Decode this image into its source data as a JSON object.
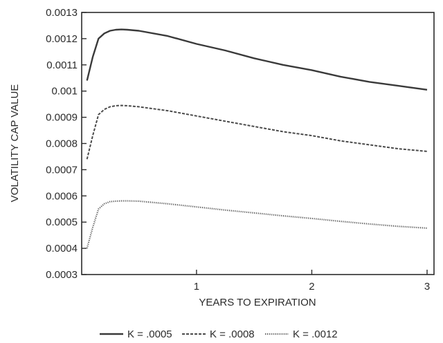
{
  "chart_data": {
    "type": "line",
    "title": "",
    "xlabel": "YEARS TO EXPIRATION",
    "ylabel": "VOLATILITY CAP VALUE",
    "xlim": [
      0.0,
      3.0
    ],
    "ylim": [
      0.0003,
      0.0013
    ],
    "x_ticks": [
      1,
      2,
      3
    ],
    "x_tick_labels": [
      "1",
      "2",
      "3"
    ],
    "y_ticks": [
      0.0003,
      0.0004,
      0.0005,
      0.0006,
      0.0007,
      0.0008,
      0.0009,
      0.001,
      0.0011,
      0.0012,
      0.0013
    ],
    "y_tick_labels": [
      "0.0003",
      "0.0004",
      "0.0005",
      "0.0006",
      "0.0007",
      "0.0008",
      "0.0009",
      "0.001",
      "0.0011",
      "0.0012",
      "0.0013"
    ],
    "grid": false,
    "legend_position": "bottom",
    "series": [
      {
        "name": "K = .0005",
        "style": "solid",
        "color": "#3a3a3a",
        "x": [
          0.05,
          0.1,
          0.15,
          0.2,
          0.25,
          0.3,
          0.35,
          0.4,
          0.5,
          0.75,
          1.0,
          1.25,
          1.5,
          1.75,
          2.0,
          2.25,
          2.5,
          2.75,
          3.0
        ],
        "y": [
          0.00104,
          0.00113,
          0.0012,
          0.00122,
          0.00123,
          0.001234,
          0.001235,
          0.001234,
          0.00123,
          0.00121,
          0.00118,
          0.001155,
          0.001125,
          0.0011,
          0.00108,
          0.001055,
          0.001035,
          0.00102,
          0.001005
        ]
      },
      {
        "name": "K = .0008",
        "style": "dashed",
        "color": "#4a4a4a",
        "x": [
          0.05,
          0.1,
          0.15,
          0.2,
          0.25,
          0.3,
          0.35,
          0.4,
          0.5,
          0.75,
          1.0,
          1.25,
          1.5,
          1.75,
          2.0,
          2.25,
          2.5,
          2.75,
          3.0
        ],
        "y": [
          0.00074,
          0.00083,
          0.00091,
          0.00093,
          0.00094,
          0.000944,
          0.000945,
          0.000944,
          0.00094,
          0.000925,
          0.000905,
          0.000885,
          0.000865,
          0.000845,
          0.00083,
          0.00081,
          0.000795,
          0.00078,
          0.00077
        ]
      },
      {
        "name": "K = .0012",
        "style": "dotted",
        "color": "#5a5a5a",
        "x": [
          0.05,
          0.1,
          0.15,
          0.2,
          0.25,
          0.3,
          0.35,
          0.4,
          0.5,
          0.75,
          1.0,
          1.25,
          1.5,
          1.75,
          2.0,
          2.25,
          2.5,
          2.75,
          3.0
        ],
        "y": [
          0.0004,
          0.00048,
          0.00055,
          0.00057,
          0.000578,
          0.00058,
          0.000581,
          0.000581,
          0.00058,
          0.00057,
          0.000558,
          0.000546,
          0.000535,
          0.000524,
          0.000514,
          0.000503,
          0.000493,
          0.000484,
          0.000477
        ]
      }
    ]
  }
}
